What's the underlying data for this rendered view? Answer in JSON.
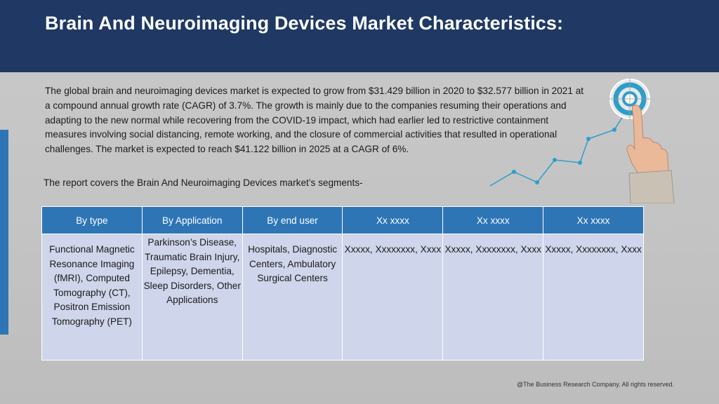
{
  "header": {
    "title": "Brain And Neuroimaging Devices Market Characteristics:"
  },
  "intro": {
    "paragraph": "The global brain and neuroimaging devices market is expected to grow from $31.429 billion in 2020 to $32.577 billion in 2021 at a compound annual growth rate (CAGR) of 3.7%. The growth is mainly due to the companies resuming their operations and adapting to the new normal while recovering from the COVID-19 impact, which had earlier led to restrictive containment measures involving social distancing, remote working, and the closure of commercial activities that resulted in operational challenges. The market is expected to reach $41.122 billion in 2025 at a CAGR of 6%.",
    "segments_line": "The report covers the Brain And Neuroimaging Devices market’s segments-"
  },
  "table": {
    "headers": [
      "By type",
      "By Application",
      "By end user",
      "Xx xxxx",
      "Xx xxxx",
      "Xx xxxx"
    ],
    "cells": [
      "Functional Magnetic Resonance Imaging (fMRI), Computed Tomography (CT), Positron Emission Tomography (PET)",
      "Parkinson’s Disease, Traumatic Brain Injury, Epilepsy, Dementia, Sleep Disorders, Other Applications",
      "Hospitals, Diagnostic Centers, Ambulatory Surgical Centers",
      "Xxxxx, Xxxxxxxx, Xxxx",
      "Xxxxx, Xxxxxxxx, Xxxx",
      "Xxxxx, Xxxxxxxx, Xxxx"
    ]
  },
  "decoration": {
    "image": "hand-touching-target-icon",
    "accent_color": "#2e9ec9"
  },
  "footer": {
    "copyright": "@The Business Research Company. All rights reserved."
  },
  "colors": {
    "header_bg": "#1f3864",
    "table_header_bg": "#2e75b6",
    "table_body_bg": "#cfd5ea",
    "page_bg": "#c6c6c6"
  }
}
